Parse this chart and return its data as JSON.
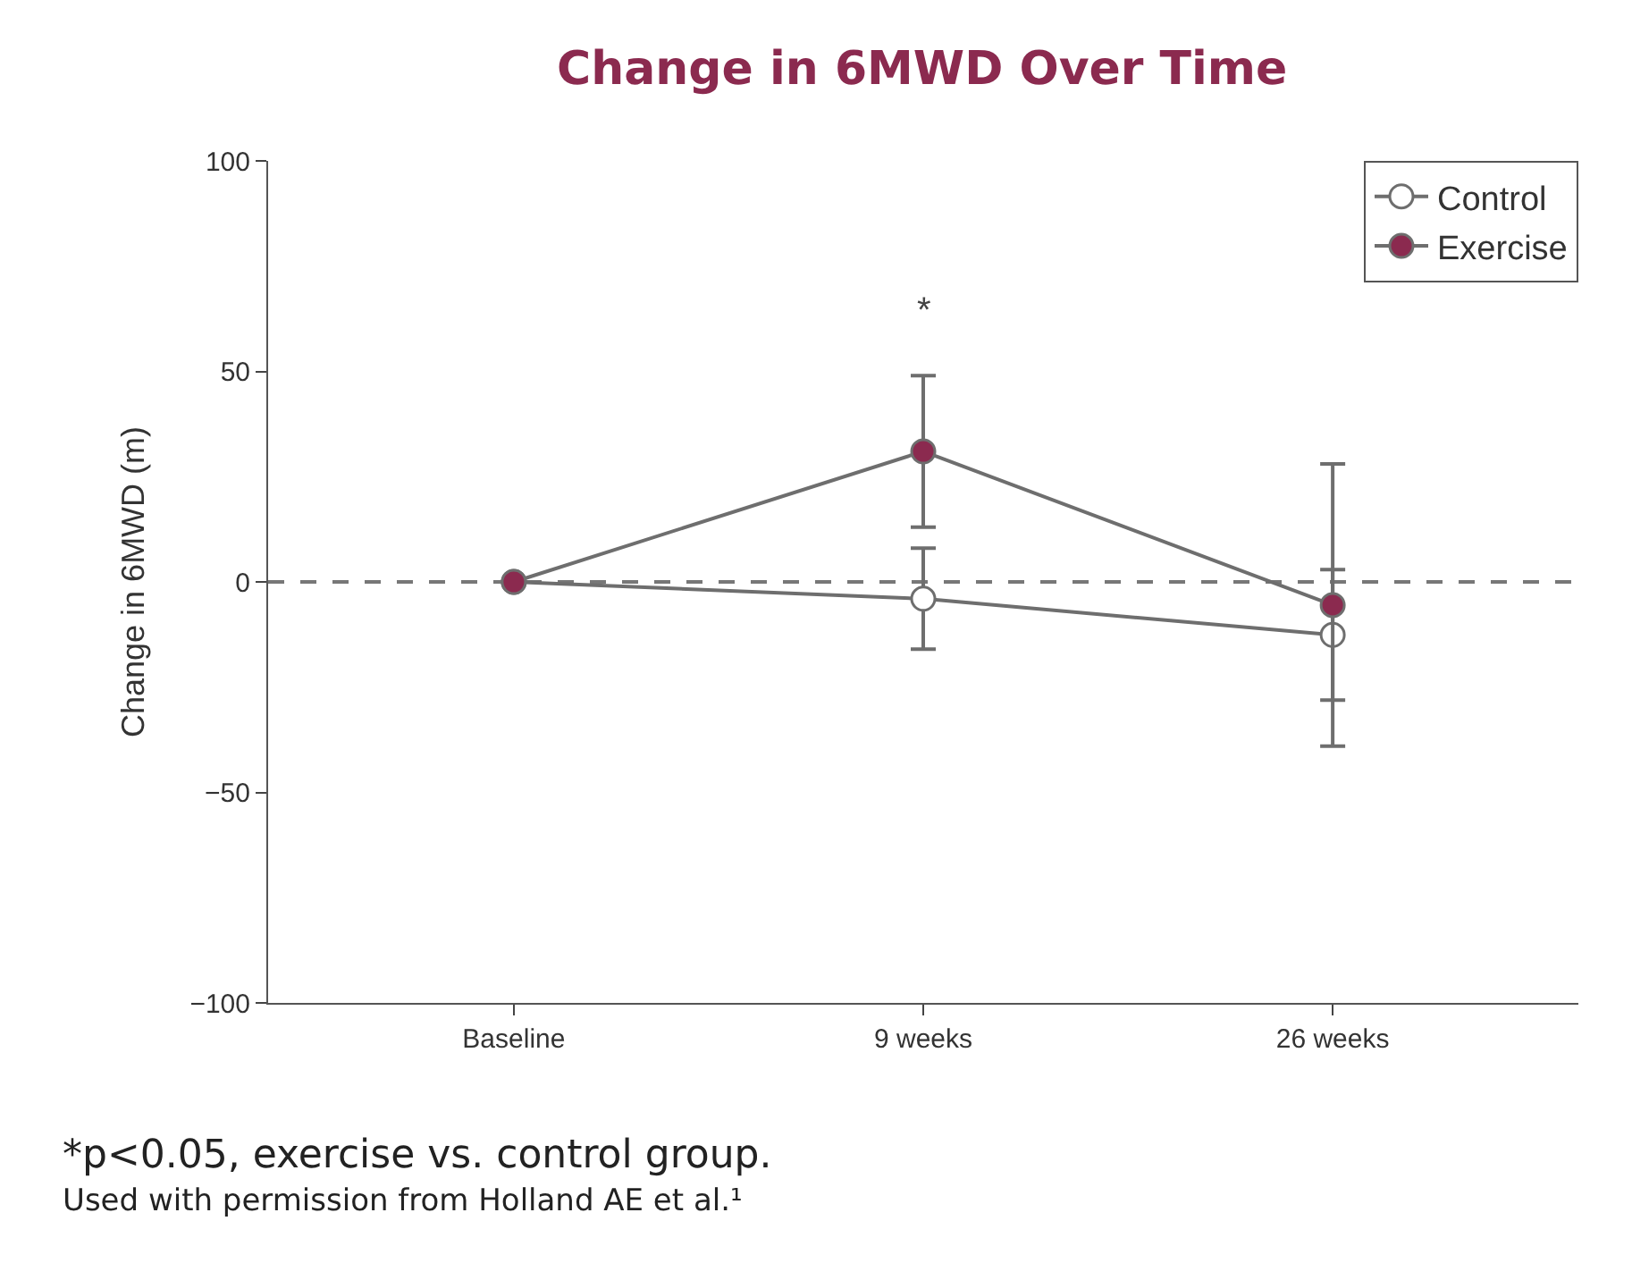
{
  "chart_data": {
    "type": "line",
    "title": "Change in 6MWD Over Time",
    "ylabel": "Change in 6MWD (m)",
    "categories": [
      "Baseline",
      "9 weeks",
      "26 weeks"
    ],
    "series": [
      {
        "name": "Control",
        "color": "#ffffff",
        "values": [
          0,
          -4,
          -12.6
        ],
        "errors": [
          null,
          12,
          15.5
        ]
      },
      {
        "name": "Exercise",
        "color": "#8b2a4f",
        "values": [
          0,
          31,
          -5.5
        ],
        "errors": [
          null,
          18,
          33.5
        ]
      }
    ],
    "ylim": [
      -100,
      100
    ],
    "yticks": [
      -100,
      -50,
      0,
      50,
      100
    ],
    "grid": false,
    "legend": "top right",
    "marker": "circle",
    "line_style": "solid",
    "ref_lines": [
      {
        "axis": "y",
        "value": 0,
        "line_style": "dashed",
        "color": "#777777"
      }
    ],
    "annotations": [
      "*",
      "*p<0.05, exercise vs. control group.",
      "Used with permission from Holland AE et al.¹"
    ]
  }
}
